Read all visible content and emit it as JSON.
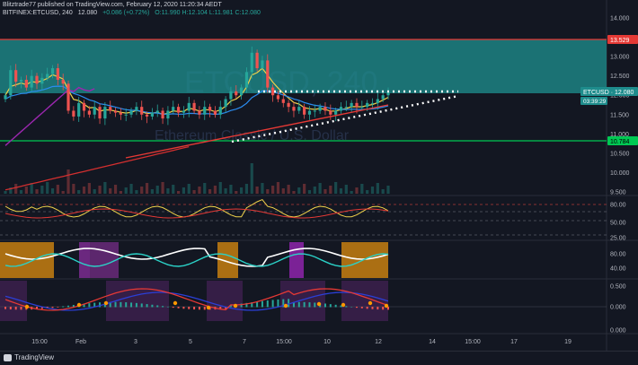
{
  "header": {
    "line1": "Blitztrade77 published on TradingView.com, February 12, 2020 11:20:34 AEDT",
    "line2_symbol": "BITFINEX:ETCUSD, 240",
    "line2_price": "12.080",
    "line2_change": "+0.086 (+0.72%)",
    "line2_ohlc": "O:11.990 H:12.104 L:11.981 C:12.080"
  },
  "watermark": {
    "symbol": "ETCUSD, 240",
    "description": "Ethereum Classic / U.S. Dollar"
  },
  "colors": {
    "background": "#131722",
    "zone": "#1e8c8c",
    "red_line": "#e53935",
    "green_line": "#00c853",
    "up": "#26a69a",
    "down": "#ef5350",
    "ma_yellow": "#f0d24a",
    "ma_blue": "#2b8cf0",
    "ma_red": "#d32f2f",
    "ma_purple": "#9c27b0",
    "dots": "#ffffff",
    "orange": "#ff9800"
  },
  "chart_data": {
    "type": "candlestick",
    "symbol": "ETCUSD",
    "timeframe": "240",
    "ylim": [
      9.5,
      14.0
    ],
    "price_ticks": [
      "14.000",
      "13.500",
      "13.000",
      "12.500",
      "12.000",
      "11.500",
      "11.000",
      "10.500",
      "10.000",
      "9.500"
    ],
    "levels": [
      {
        "label": "13.529",
        "value": 13.529,
        "color": "#e53935"
      },
      {
        "label": "10.784",
        "value": 10.784,
        "color": "#00c853"
      },
      {
        "label": "ETCUSD · 12.080",
        "value": 12.08,
        "color": "#1e8c8c"
      }
    ],
    "countdown": "03:39:29",
    "resistance_zone": [
      12.08,
      13.53
    ],
    "series_close": [
      12.0,
      12.65,
      12.35,
      12.4,
      12.2,
      12.5,
      12.3,
      12.45,
      12.55,
      12.7,
      12.4,
      12.3,
      11.6,
      11.45,
      11.8,
      11.6,
      11.5,
      11.7,
      11.4,
      11.7,
      11.6,
      11.55,
      11.5,
      11.5,
      11.6,
      11.7,
      11.5,
      11.45,
      11.55,
      11.6,
      11.4,
      11.6,
      11.7,
      11.55,
      11.6,
      11.8,
      11.6,
      11.5,
      11.7,
      11.6,
      11.5,
      11.7,
      11.9,
      12.1,
      12.0,
      12.2,
      12.6,
      13.1,
      12.7,
      12.9,
      12.2,
      12.0,
      11.9,
      11.8,
      11.7,
      11.6,
      11.7,
      11.5,
      11.6,
      11.6,
      11.7,
      11.6,
      11.5,
      11.6,
      11.7,
      11.7,
      11.8,
      11.7,
      11.7,
      11.8,
      11.8,
      11.9,
      12.0,
      12.08
    ],
    "trendlines": [
      {
        "name": "dotted-resistance",
        "from": [
          "Feb 7",
          12.1
        ],
        "to": [
          "Feb 14",
          12.08
        ]
      },
      {
        "name": "dotted-support",
        "from": [
          "Feb 7",
          10.8
        ],
        "to": [
          "Feb 14",
          12.0
        ]
      }
    ],
    "volume_note": "volume bars at price pane bottom",
    "rsi": {
      "ticks": [
        "80.00",
        "50.00",
        "25.00"
      ],
      "levels": [
        80,
        60,
        50,
        25
      ]
    },
    "stoch": {
      "ticks": [
        "80.00",
        "40.00"
      ]
    },
    "macd": {
      "ticks": [
        "0.500",
        "0.000",
        "0.000"
      ]
    },
    "time_ticks": [
      "15:00",
      "Feb",
      "3",
      "5",
      "7",
      "15:00",
      "10",
      "12",
      "14",
      "15:00",
      "17",
      "19"
    ]
  },
  "footer": {
    "brand": "TradingView"
  }
}
